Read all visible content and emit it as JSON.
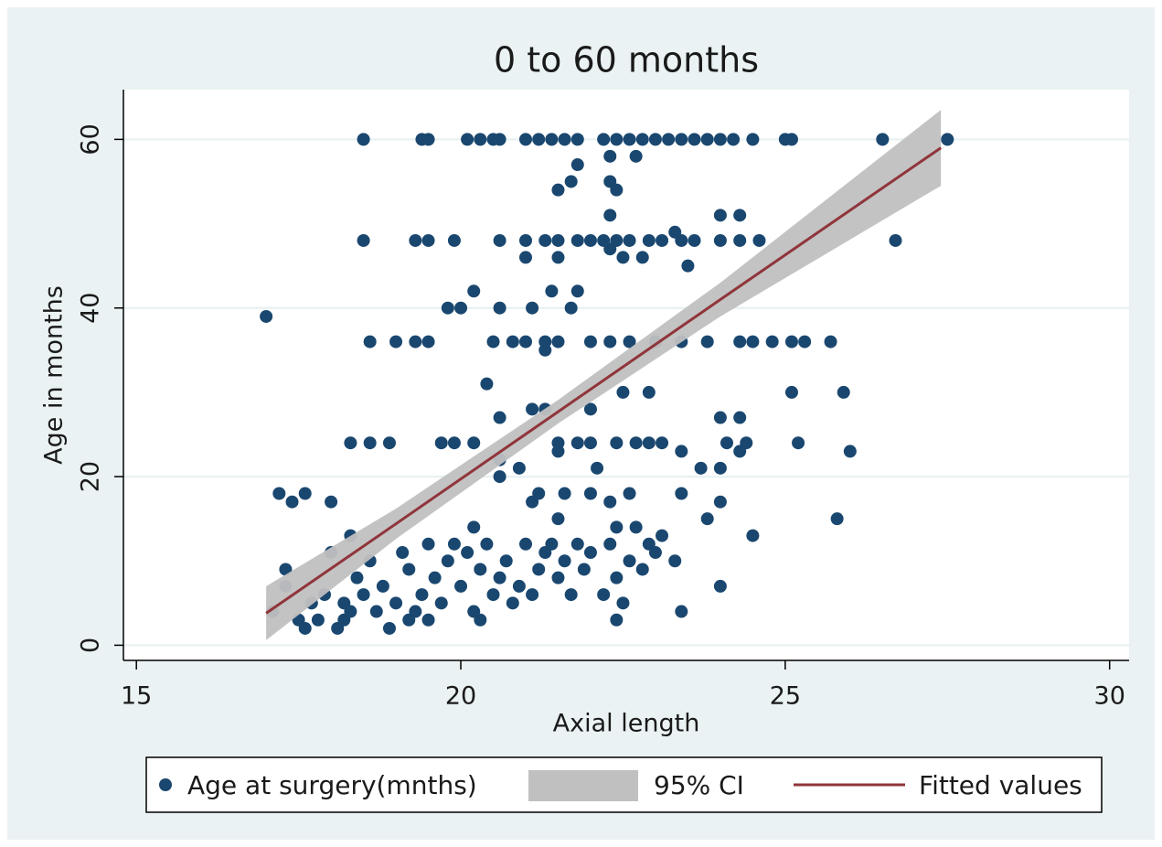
{
  "chart_data": {
    "type": "scatter",
    "title": "0 to 60 months",
    "xlabel": "Axial length",
    "ylabel": "Age in months",
    "xlim": [
      14.8,
      30.3
    ],
    "ylim": [
      -1.8,
      65.9
    ],
    "xticks": [
      15,
      20,
      25,
      30
    ],
    "yticks": [
      0,
      20,
      40,
      60
    ],
    "grid": true,
    "legend": "bottom",
    "series": [
      {
        "name": "Age at surgery(mnths)",
        "color": "#1a476f",
        "x": [
          18.5,
          19.4,
          19.5,
          20.1,
          20.3,
          20.5,
          20.6,
          21.0,
          21.2,
          21.4,
          21.6,
          21.8,
          22.2,
          22.4,
          22.6,
          22.8,
          23.0,
          23.2,
          23.4,
          23.6,
          23.8,
          24.0,
          24.2,
          24.5,
          25.0,
          25.1,
          26.5,
          27.5,
          22.3,
          22.7,
          21.8,
          21.7,
          22.3,
          21.5,
          22.4,
          22.3,
          24.0,
          24.3,
          18.5,
          19.3,
          19.5,
          19.9,
          20.6,
          21.0,
          21.3,
          21.5,
          21.8,
          22.0,
          22.2,
          22.4,
          22.6,
          22.9,
          23.1,
          23.4,
          23.6,
          24.0,
          24.3,
          24.6,
          26.7,
          23.3,
          22.3,
          21.0,
          21.5,
          22.5,
          22.8,
          23.5,
          20.2,
          21.4,
          21.8,
          19.8,
          20.0,
          20.6,
          21.1,
          21.7,
          17.0,
          18.6,
          19.0,
          19.3,
          19.5,
          20.5,
          20.8,
          21.0,
          21.3,
          21.5,
          22.0,
          22.3,
          22.6,
          23.0,
          23.4,
          23.8,
          24.3,
          24.5,
          24.8,
          25.1,
          25.3,
          25.7,
          21.3,
          20.4,
          22.5,
          22.9,
          25.1,
          25.9,
          21.1,
          21.3,
          22.0,
          20.6,
          24.0,
          24.3,
          18.3,
          18.6,
          18.9,
          19.7,
          19.9,
          20.2,
          21.5,
          21.8,
          22.0,
          22.4,
          22.7,
          22.9,
          23.1,
          24.1,
          24.4,
          25.2,
          21.5,
          23.4,
          24.3,
          26.0,
          20.6,
          20.9,
          22.1,
          23.7,
          24.0,
          20.6,
          17.2,
          17.6,
          21.2,
          21.6,
          22.0,
          22.6,
          23.4,
          17.4,
          18.0,
          21.1,
          22.3,
          24.0,
          21.5,
          23.8,
          25.8,
          20.2,
          22.4,
          18.3,
          24.5,
          23.4,
          24.0,
          22.4,
          17.1,
          17.3,
          17.3,
          17.5,
          17.6,
          17.7,
          17.9,
          18.0,
          18.1,
          18.2,
          18.3,
          18.4,
          18.5,
          18.6,
          18.7,
          18.8,
          18.9,
          19.0,
          19.1,
          19.2,
          19.3,
          19.4,
          19.5,
          19.6,
          19.7,
          19.8,
          19.9,
          20.0,
          20.1,
          20.2,
          20.3,
          20.4,
          20.5,
          20.6,
          20.7,
          20.8,
          20.9,
          21.0,
          21.1,
          21.2,
          21.3,
          21.4,
          21.5,
          21.6,
          21.7,
          21.8,
          21.9,
          22.0,
          22.2,
          22.3,
          22.4,
          22.5,
          22.6,
          22.7,
          22.8,
          22.9,
          23.0,
          23.1,
          23.3,
          19.5,
          20.3,
          17.8,
          18.2,
          19.2
        ],
        "y": [
          60,
          60,
          60,
          60,
          60,
          60,
          60,
          60,
          60,
          60,
          60,
          60,
          60,
          60,
          60,
          60,
          60,
          60,
          60,
          60,
          60,
          60,
          60,
          60,
          60,
          60,
          60,
          60,
          58,
          58,
          57,
          55,
          55,
          54,
          54,
          51,
          51,
          51,
          48,
          48,
          48,
          48,
          48,
          48,
          48,
          48,
          48,
          48,
          48,
          48,
          48,
          48,
          48,
          48,
          48,
          48,
          48,
          48,
          48,
          49,
          47,
          46,
          46,
          46,
          46,
          45,
          42,
          42,
          42,
          40,
          40,
          40,
          40,
          40,
          39,
          36,
          36,
          36,
          36,
          36,
          36,
          36,
          36,
          36,
          36,
          36,
          36,
          36,
          36,
          36,
          36,
          36,
          36,
          36,
          36,
          36,
          35,
          31,
          30,
          30,
          30,
          30,
          28,
          28,
          28,
          27,
          27,
          27,
          24,
          24,
          24,
          24,
          24,
          24,
          24,
          24,
          24,
          24,
          24,
          24,
          24,
          24,
          24,
          24,
          23,
          23,
          23,
          23,
          22,
          21,
          21,
          21,
          21,
          20,
          18,
          18,
          18,
          18,
          18,
          18,
          18,
          17,
          17,
          17,
          17,
          17,
          15,
          15,
          15,
          14,
          14,
          13,
          13,
          4,
          7,
          3,
          4,
          7,
          9,
          3,
          2,
          5,
          6,
          11,
          2,
          5,
          4,
          8,
          6,
          10,
          4,
          7,
          2,
          5,
          11,
          9,
          4,
          6,
          3,
          8,
          5,
          10,
          12,
          7,
          11,
          4,
          9,
          12,
          6,
          8,
          10,
          5,
          7,
          12,
          6,
          9,
          11,
          12,
          8,
          10,
          6,
          12,
          9,
          11,
          6,
          12,
          8,
          5,
          10,
          14,
          9,
          12,
          11,
          13,
          10,
          12,
          3,
          3,
          3,
          3
        ]
      },
      {
        "name": "95% CI",
        "color": "#c0c0c0",
        "x": [
          17,
          19,
          21.5,
          24,
          27.4
        ],
        "lower": [
          0.6,
          12.6,
          26.3,
          39.0,
          54.5
        ],
        "upper": [
          7.0,
          16.2,
          29.1,
          43.0,
          63.5
        ]
      },
      {
        "name": "Fitted values",
        "color": "#90353b",
        "x": [
          17,
          19,
          21.5,
          24,
          27.4
        ],
        "values": [
          3.8,
          14.4,
          27.7,
          41.0,
          59.0
        ]
      }
    ]
  }
}
